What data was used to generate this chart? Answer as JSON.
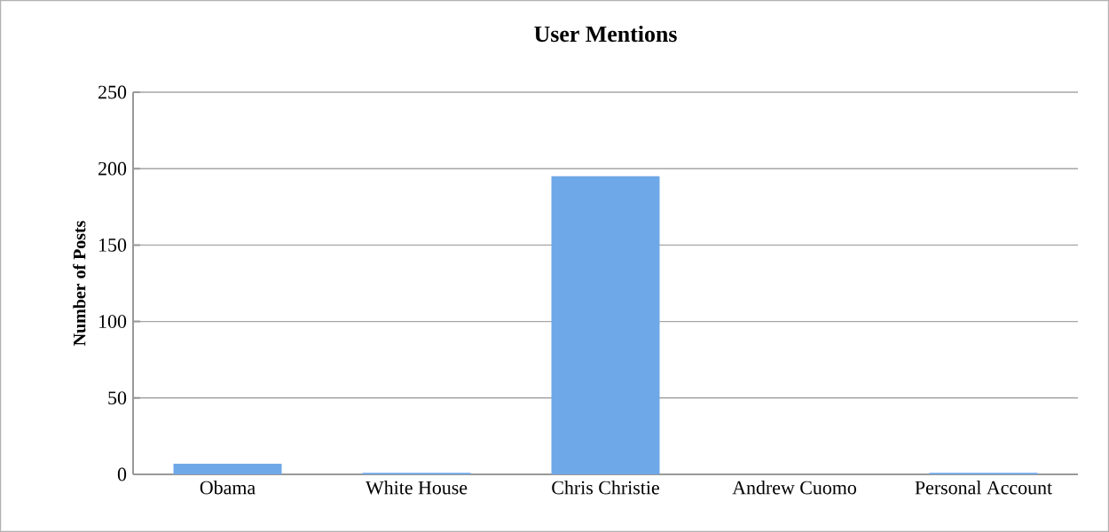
{
  "chart_data": {
    "type": "bar",
    "title": "User Mentions",
    "ylabel": "Number of Posts",
    "categories": [
      "Obama",
      "White House",
      "Chris Christie",
      "Andrew Cuomo",
      "Personal Account"
    ],
    "values": [
      7,
      1,
      195,
      0,
      1
    ],
    "color": "#6fa8e8",
    "ylim": [
      0,
      250
    ],
    "yticks": [
      0,
      50,
      100,
      150,
      200,
      250
    ],
    "grid": "y"
  }
}
